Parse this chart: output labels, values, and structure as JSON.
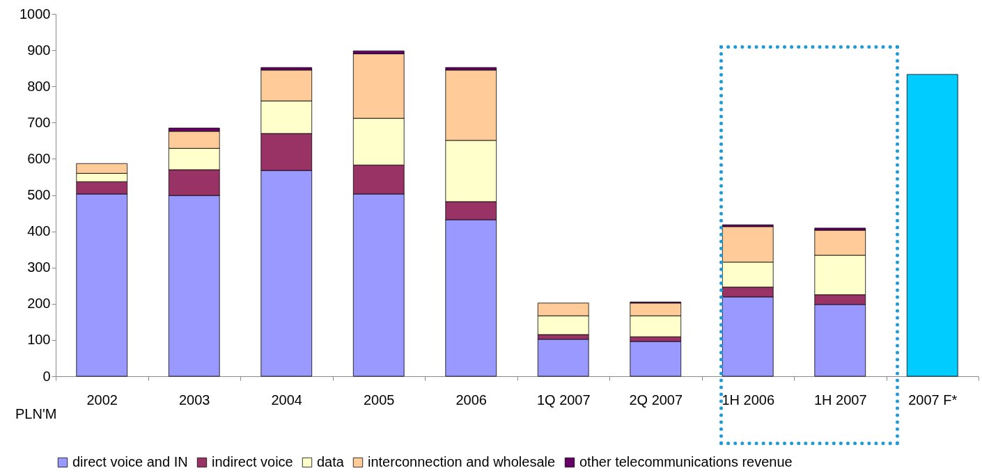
{
  "chart_data": {
    "type": "bar",
    "stacked": true,
    "categories": [
      "2002",
      "2003",
      "2004",
      "2005",
      "2006",
      "1Q 2007",
      "2Q 2007",
      "1H 2006",
      "1H 2007",
      "2007 F*"
    ],
    "series": [
      {
        "name": "direct voice and IN",
        "color": "#9999ff",
        "values": [
          503,
          499,
          568,
          503,
          432,
          102,
          96,
          219,
          198,
          null
        ]
      },
      {
        "name": "indirect voice",
        "color": "#993366",
        "values": [
          34,
          71,
          102,
          80,
          50,
          13,
          13,
          27,
          27,
          null
        ]
      },
      {
        "name": "data",
        "color": "#ffffcc",
        "values": [
          23,
          59,
          90,
          129,
          169,
          52,
          58,
          69,
          109,
          null
        ]
      },
      {
        "name": "interconnection and wholesale",
        "color": "#ffcc99",
        "values": [
          27,
          47,
          85,
          178,
          194,
          35,
          35,
          98,
          69,
          null
        ]
      },
      {
        "name": "other telecommunications revenue",
        "color": "#660066",
        "values": [
          null,
          9,
          7,
          8,
          7,
          null,
          3,
          5,
          6,
          null
        ]
      },
      {
        "color": "#00ccff",
        "values": [
          null,
          null,
          null,
          null,
          null,
          null,
          null,
          null,
          null,
          833
        ]
      }
    ],
    "ylim": [
      0,
      1000
    ],
    "yticks": [
      0,
      100,
      200,
      300,
      400,
      500,
      600,
      700,
      800,
      900,
      1000
    ],
    "grid": false,
    "legend": "bottom",
    "annotations": [
      "PLN'M"
    ]
  }
}
